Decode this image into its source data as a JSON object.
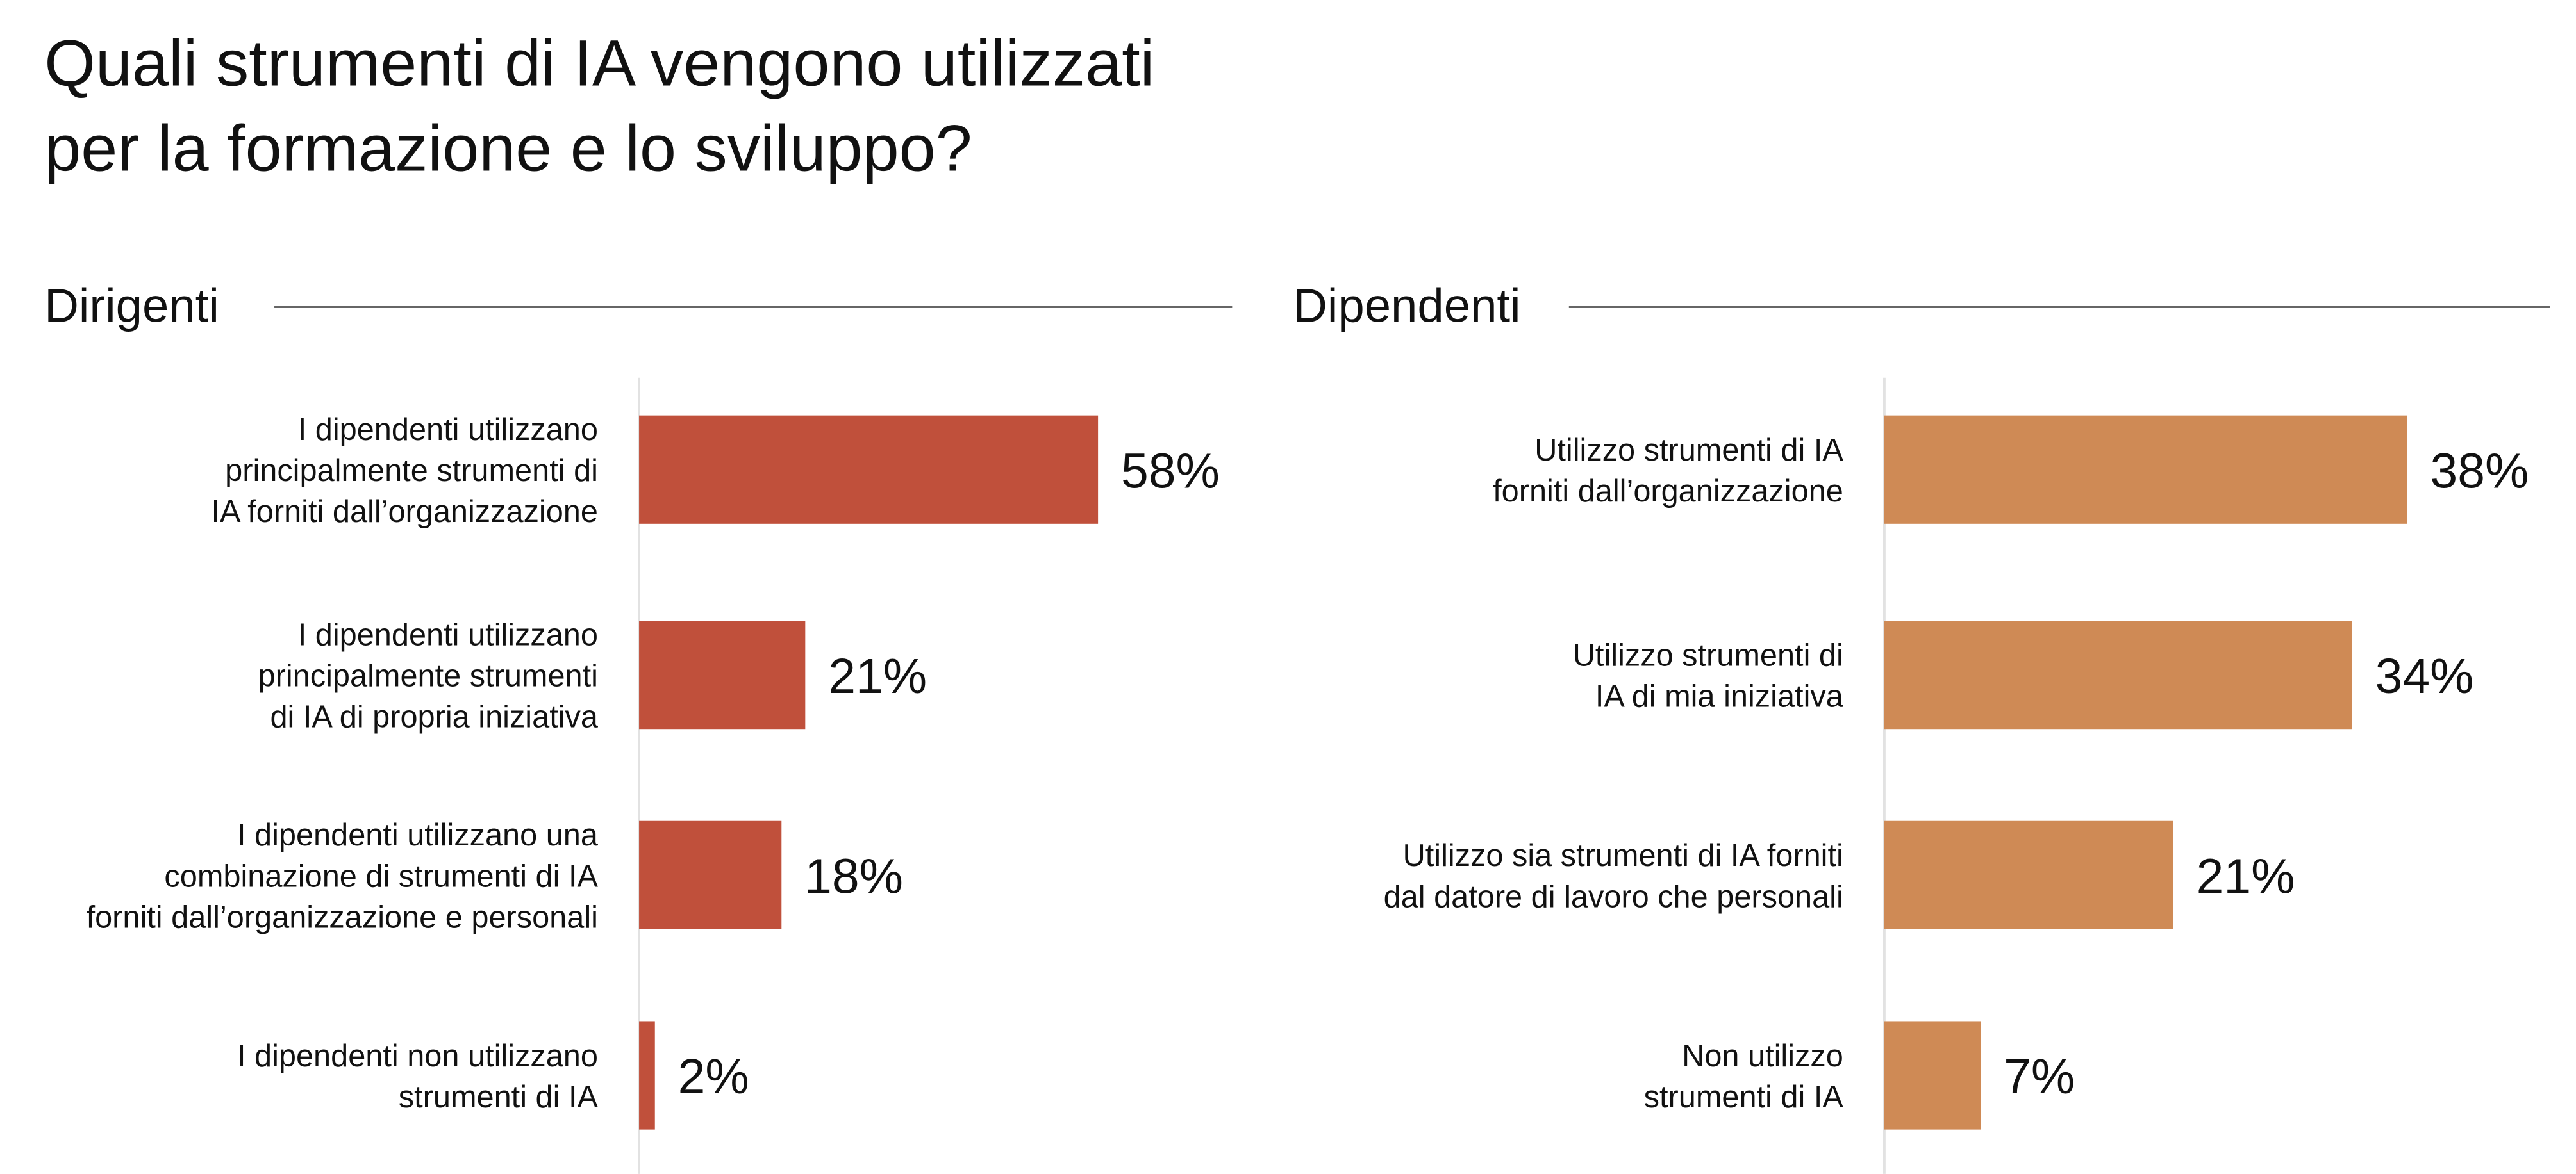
{
  "title": "Quali strumenti di IA vengono utilizzati\nper la formazione e lo sviluppo?",
  "chart_data": [
    {
      "type": "bar",
      "orientation": "horizontal",
      "title": "Dirigenti",
      "categories": [
        "I dipendenti utilizzano\nprincipalmente strumenti di\nIA forniti dall’organizzazione",
        "I dipendenti utilizzano\nprincipalmente strumenti\ndi IA di propria iniziativa",
        "I dipendenti utilizzano una\ncombinazione di strumenti di IA\nforniti dall’organizzazione e personali",
        "I dipendenti non utilizzano\nstrumenti di IA"
      ],
      "values": [
        58,
        21,
        18,
        2
      ],
      "value_labels": [
        "58%",
        "21%",
        "18%",
        "2%"
      ],
      "color": "#c0503b",
      "xlim": [
        0,
        60
      ]
    },
    {
      "type": "bar",
      "orientation": "horizontal",
      "title": "Dipendenti",
      "categories": [
        "Utilizzo strumenti di IA\nforniti dall’organizzazione",
        "Utilizzo strumenti di\nIA di mia iniziativa",
        "Utilizzo sia strumenti di IA forniti\ndal datore di lavoro che personali",
        "Non utilizzo\nstrumenti di IA"
      ],
      "values": [
        38,
        34,
        21,
        7
      ],
      "value_labels": [
        "38%",
        "34%",
        "21%",
        "7%"
      ],
      "color": "#cf8a55",
      "xlim": [
        0,
        40
      ]
    }
  ]
}
